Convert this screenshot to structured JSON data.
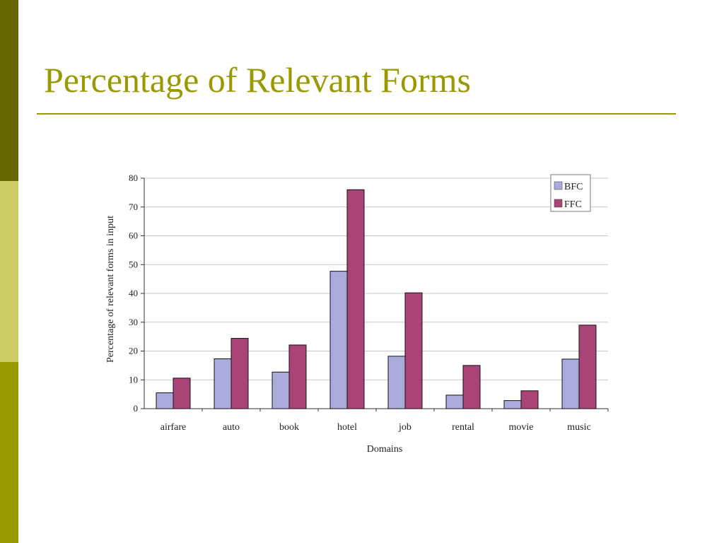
{
  "slide": {
    "title": "Percentage of Relevant Forms"
  },
  "colors": {
    "sidebar_top": "#666600",
    "sidebar_mid": "#cccc66",
    "sidebar_bottom": "#999900",
    "title": "#999900",
    "bfc": "#aaaadd",
    "ffc": "#aa4477"
  },
  "chart_data": {
    "type": "bar",
    "categories": [
      "airfare",
      "auto",
      "book",
      "hotel",
      "job",
      "rental",
      "movie",
      "music"
    ],
    "series": [
      {
        "name": "BFC",
        "values": [
          5.5,
          17.3,
          12.7,
          47.7,
          18.2,
          4.7,
          2.8,
          17.2
        ]
      },
      {
        "name": "FFC",
        "values": [
          10.6,
          24.4,
          22.1,
          76.0,
          40.2,
          15.0,
          6.2,
          29.0
        ]
      }
    ],
    "xlabel": "Domains",
    "ylabel": "Percentage of relevant forms in input",
    "ylim": [
      0,
      80
    ],
    "yticks": [
      "0",
      "10",
      "20",
      "30",
      "40",
      "50",
      "60",
      "70",
      "80"
    ],
    "grid": true,
    "legend": "top-right"
  }
}
